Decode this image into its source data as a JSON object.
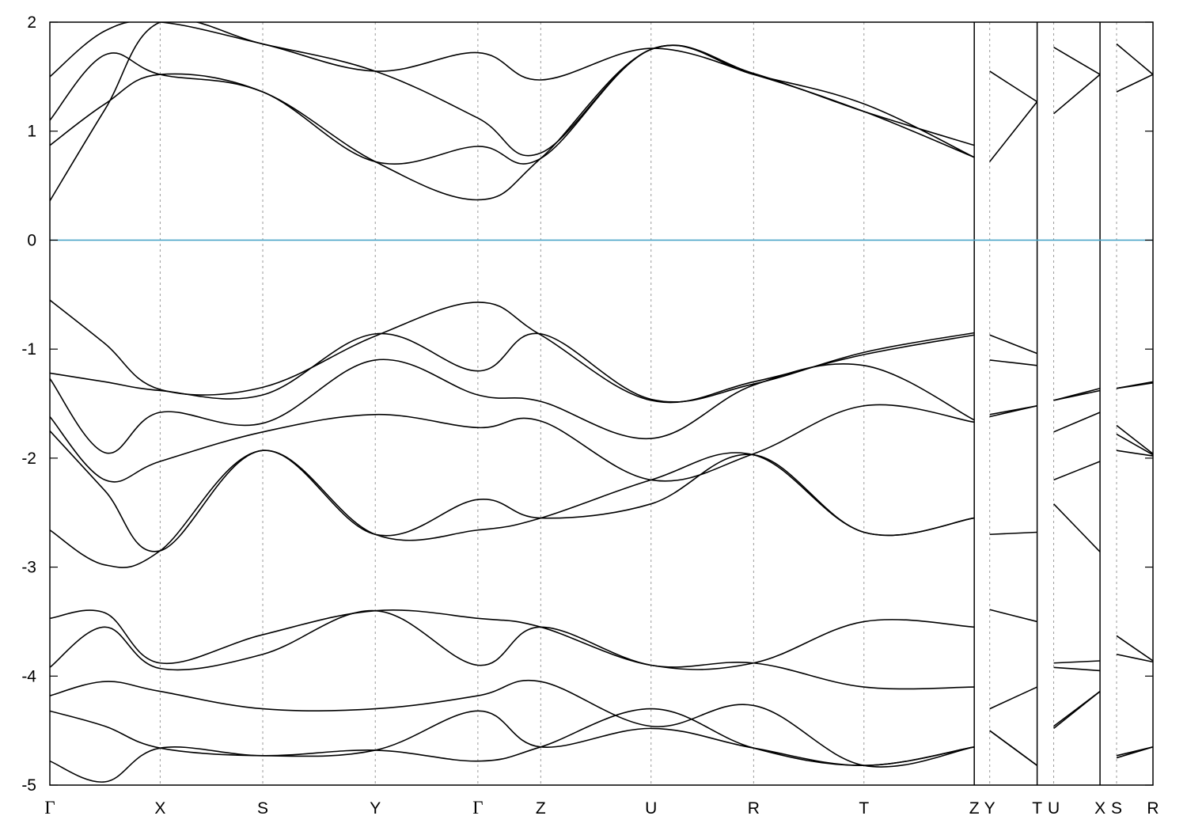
{
  "chart_data": {
    "type": "line",
    "title": "",
    "xlabel": "",
    "ylabel": "",
    "ylim": [
      -5,
      2
    ],
    "y_ticks": [
      2,
      1,
      0,
      -1,
      -2,
      -3,
      -4,
      -5
    ],
    "grid": "vertical dashed lines at high-symmetry points",
    "fermi_level": {
      "value": 0,
      "color": "#4aa5c8"
    },
    "high_symmetry_points": [
      {
        "label": "Γ",
        "x": 0.0
      },
      {
        "label": "X",
        "x": 1.0
      },
      {
        "label": "S",
        "x": 1.93
      },
      {
        "label": "Y",
        "x": 2.95
      },
      {
        "label": "Γ",
        "x": 3.88
      },
      {
        "label": "Z",
        "x": 4.45
      },
      {
        "label": "U",
        "x": 5.45
      },
      {
        "label": "R",
        "x": 6.38
      },
      {
        "label": "T",
        "x": 7.38
      },
      {
        "label": "Z",
        "x": 8.38
      },
      {
        "label": "Y",
        "x": 8.52
      },
      {
        "label": "T",
        "x": 8.95
      },
      {
        "label": "U",
        "x": 9.1
      },
      {
        "label": "X",
        "x": 9.52
      },
      {
        "label": "S",
        "x": 9.67
      },
      {
        "label": "R",
        "x": 10.0
      }
    ],
    "path_breaks_after": [
      "Z",
      "T",
      "X"
    ],
    "xlim": [
      0,
      10
    ],
    "series_color": "#000000",
    "series": [
      {
        "x": [
          0,
          0.5,
          1.0,
          1.93,
          2.95,
          3.88,
          4.45,
          5.45,
          6.38,
          7.38,
          8.38,
          8.52,
          8.95,
          9.1,
          9.52,
          9.67,
          10.0
        ],
        "values": [
          -0.55,
          -0.95,
          -1.37,
          -1.35,
          -0.88,
          -0.57,
          -0.87,
          -1.47,
          -1.3,
          -1.05,
          -0.87,
          -0.87,
          -1.04,
          -1.47,
          -1.36,
          -1.36,
          -1.3
        ]
      },
      {
        "x": [
          0,
          0.5,
          1.0,
          1.93,
          2.95,
          3.88,
          4.45,
          5.45,
          6.38,
          7.38,
          8.38,
          8.52,
          8.95,
          9.1,
          9.52,
          9.67,
          10.0
        ],
        "values": [
          -1.22,
          -1.3,
          -1.38,
          -1.42,
          -0.86,
          -1.2,
          -0.86,
          -1.46,
          -1.32,
          -1.03,
          -0.85,
          -1.1,
          -1.15,
          -1.47,
          -1.38,
          -1.36,
          -1.31
        ]
      },
      {
        "x": [
          0,
          0.5,
          1.0,
          1.93,
          2.95,
          3.88,
          4.45,
          5.45,
          6.38,
          7.38,
          8.38,
          8.52,
          8.95,
          9.1,
          9.52,
          9.67,
          10.0
        ],
        "values": [
          -1.27,
          -1.95,
          -1.58,
          -1.68,
          -1.1,
          -1.42,
          -1.48,
          -1.82,
          -1.33,
          -1.15,
          -1.65,
          -1.6,
          -1.52,
          -1.76,
          -1.58,
          -1.7,
          -1.96
        ]
      },
      {
        "x": [
          0,
          0.5,
          1.0,
          1.93,
          2.95,
          3.88,
          4.45,
          5.45,
          6.38,
          7.38,
          8.38,
          8.52,
          8.95,
          9.1,
          9.52,
          9.67,
          10.0
        ],
        "values": [
          -1.62,
          -2.2,
          -2.03,
          -1.76,
          -1.6,
          -1.72,
          -1.66,
          -2.2,
          -1.96,
          -1.52,
          -1.67,
          -1.62,
          -1.52,
          -2.2,
          -2.03,
          -1.78,
          -1.97
        ]
      },
      {
        "x": [
          0,
          0.5,
          1.0,
          1.93,
          2.95,
          3.88,
          4.45,
          5.45,
          6.38,
          7.38,
          8.38,
          8.52,
          8.95,
          9.1,
          9.52,
          9.67,
          10.0
        ],
        "values": [
          -1.75,
          -2.3,
          -2.85,
          -1.93,
          -2.7,
          -2.38,
          -2.55,
          -2.42,
          -1.97,
          -2.68,
          -2.55,
          -2.7,
          -2.68,
          -2.42,
          -2.86,
          -1.93,
          -1.98
        ]
      },
      {
        "x": [
          0,
          0.5,
          1.0,
          1.93,
          2.95,
          3.88,
          4.45,
          5.45,
          6.38,
          7.38,
          8.38
        ],
        "values": [
          -2.66,
          -2.98,
          -2.85,
          -1.93,
          -2.7,
          -2.66,
          -2.55,
          -2.2,
          -1.97,
          -2.68,
          -2.55
        ]
      },
      {
        "x": [
          0,
          0.5,
          1.0,
          1.93,
          2.95,
          3.88,
          4.45,
          5.45,
          6.38,
          7.38,
          8.38,
          8.52,
          8.95,
          9.1,
          9.52,
          9.67,
          10.0
        ],
        "values": [
          -3.47,
          -3.42,
          -3.88,
          -3.62,
          -3.4,
          -3.47,
          -3.55,
          -3.9,
          -3.88,
          -3.5,
          -3.55,
          -3.39,
          -3.5,
          -3.88,
          -3.86,
          -3.63,
          -3.86
        ]
      },
      {
        "x": [
          0,
          0.5,
          1.0,
          1.93,
          2.95,
          3.88,
          4.45,
          5.45,
          6.38,
          7.38,
          8.38,
          8.52,
          8.95,
          9.1,
          9.52,
          9.67,
          10.0
        ],
        "values": [
          -3.92,
          -3.55,
          -3.93,
          -3.8,
          -3.4,
          -3.9,
          -3.55,
          -3.9,
          -3.88,
          -4.1,
          -4.1,
          -4.3,
          -4.1,
          -3.92,
          -3.95,
          -3.8,
          -3.87
        ]
      },
      {
        "x": [
          0,
          0.5,
          1.0,
          1.93,
          2.95,
          3.88,
          4.45,
          5.45,
          6.38,
          7.38,
          8.38,
          8.52,
          8.95,
          9.1,
          9.52,
          9.67,
          10.0
        ],
        "values": [
          -4.18,
          -4.05,
          -4.14,
          -4.3,
          -4.3,
          -4.18,
          -4.05,
          -4.46,
          -4.27,
          -4.82,
          -4.65,
          -4.5,
          -4.82,
          -4.46,
          -4.14,
          -4.75,
          -4.65
        ]
      },
      {
        "x": [
          0,
          0.5,
          1.0,
          1.93,
          2.95,
          3.88,
          4.45,
          5.45,
          6.38,
          7.38,
          8.38,
          8.52,
          8.95,
          9.1,
          9.52,
          9.67,
          10.0
        ],
        "values": [
          -4.32,
          -4.46,
          -4.66,
          -4.73,
          -4.68,
          -4.32,
          -4.65,
          -4.48,
          -4.66,
          -4.82,
          -4.65,
          -4.5,
          -4.82,
          -4.48,
          -4.14,
          -4.73,
          -4.65
        ]
      },
      {
        "x": [
          0,
          0.5,
          1.0,
          1.93,
          2.95,
          3.88,
          4.45,
          5.45,
          6.38,
          7.38,
          8.38
        ],
        "values": [
          -4.78,
          -4.97,
          -4.66,
          -4.73,
          -4.68,
          -4.78,
          -4.65,
          -4.3,
          -4.66,
          -4.82,
          -4.65
        ]
      },
      {
        "x": [
          0,
          0.5,
          1.0,
          1.93,
          2.95,
          3.88,
          4.45,
          5.45,
          6.38,
          7.38,
          8.38,
          8.52,
          8.95,
          9.1,
          9.52,
          9.67,
          10.0
        ],
        "values": [
          0.36,
          1.2,
          2.0,
          1.8,
          1.55,
          1.12,
          0.8,
          1.75,
          1.53,
          1.18,
          0.87,
          1.55,
          1.27,
          1.77,
          1.52,
          1.8,
          1.52
        ]
      },
      {
        "x": [
          0,
          0.5,
          1.0,
          1.93,
          2.95,
          3.88,
          4.45,
          5.45,
          6.38,
          7.38,
          8.38,
          8.52,
          8.95,
          9.1,
          9.52,
          9.67,
          10.0
        ],
        "values": [
          0.87,
          1.25,
          1.52,
          1.36,
          0.72,
          0.37,
          0.75,
          1.75,
          1.52,
          1.25,
          0.76,
          0.72,
          1.27,
          1.16,
          1.52,
          1.36,
          1.52
        ]
      },
      {
        "x": [
          0,
          0.5,
          1.0,
          1.93,
          2.95,
          3.88,
          4.45,
          5.45,
          6.38,
          7.38,
          8.38
        ],
        "values": [
          1.1,
          1.7,
          1.52,
          1.36,
          0.72,
          0.86,
          0.75,
          1.75,
          1.52,
          1.18,
          0.76
        ]
      },
      {
        "x": [
          0,
          0.5,
          1.0,
          1.93,
          2.95,
          3.88,
          4.45,
          5.45,
          6.38
        ],
        "values": [
          1.5,
          1.92,
          2.0,
          1.8,
          1.55,
          1.72,
          1.47,
          1.76,
          1.52
        ]
      }
    ]
  }
}
